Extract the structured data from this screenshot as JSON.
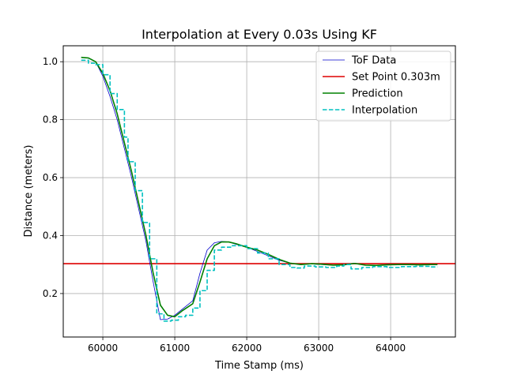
{
  "chart_data": {
    "type": "line",
    "title": "Interpolation at Every 0.03s Using KF",
    "xlabel": "Time Stamp (ms)",
    "ylabel": "Distance (meters)",
    "xlim": [
      59450,
      64900
    ],
    "ylim": [
      0.05,
      1.055
    ],
    "xticks": [
      60000,
      61000,
      62000,
      63000,
      64000
    ],
    "yticks": [
      0.2,
      0.4,
      0.6,
      0.8,
      1.0
    ],
    "xtick_labels": [
      "60000",
      "61000",
      "62000",
      "63000",
      "64000"
    ],
    "ytick_labels": [
      "0.2",
      "0.4",
      "0.6",
      "0.8",
      "1.0"
    ],
    "grid": true,
    "legend_position": "top-right",
    "series": [
      {
        "name": "ToF Data",
        "style": "solid-thin",
        "color": "#0000cc",
        "x": [
          59700,
          59800,
          59900,
          60000,
          60100,
          60200,
          60300,
          60400,
          60500,
          60600,
          60700,
          60800,
          60900,
          61000,
          61100,
          61250,
          61350,
          61450,
          61550,
          61650,
          61750,
          61850,
          62000,
          62150,
          62300,
          62450,
          62600,
          62750,
          62900,
          63050,
          63200,
          63350,
          63500,
          63650,
          63800,
          63950,
          64100,
          64250,
          64400,
          64550,
          64650
        ],
        "y": [
          1.015,
          1.012,
          1.0,
          0.95,
          0.88,
          0.8,
          0.7,
          0.6,
          0.49,
          0.38,
          0.24,
          0.11,
          0.112,
          0.125,
          0.145,
          0.175,
          0.27,
          0.35,
          0.375,
          0.38,
          0.378,
          0.37,
          0.36,
          0.345,
          0.33,
          0.315,
          0.305,
          0.3,
          0.302,
          0.3,
          0.298,
          0.3,
          0.305,
          0.298,
          0.297,
          0.3,
          0.301,
          0.3,
          0.299,
          0.301,
          0.3
        ]
      },
      {
        "name": "Set Point 0.303m",
        "style": "solid",
        "color": "#dd0000",
        "x": [
          59450,
          64900
        ],
        "y": [
          0.303,
          0.303
        ]
      },
      {
        "name": "Prediction",
        "style": "solid",
        "color": "#008000",
        "x": [
          59700,
          59800,
          59900,
          60000,
          60100,
          60200,
          60300,
          60400,
          60500,
          60600,
          60700,
          60800,
          60900,
          61000,
          61100,
          61250,
          61350,
          61450,
          61550,
          61650,
          61750,
          61850,
          62000,
          62150,
          62300,
          62450,
          62600,
          62750,
          62900,
          63050,
          63200,
          63350,
          63500,
          63650,
          63800,
          63950,
          64100,
          64250,
          64400,
          64550,
          64650
        ],
        "y": [
          1.015,
          1.013,
          1.0,
          0.96,
          0.9,
          0.82,
          0.72,
          0.62,
          0.51,
          0.4,
          0.27,
          0.16,
          0.125,
          0.12,
          0.14,
          0.165,
          0.24,
          0.32,
          0.365,
          0.378,
          0.378,
          0.372,
          0.36,
          0.35,
          0.335,
          0.318,
          0.305,
          0.3,
          0.303,
          0.301,
          0.298,
          0.299,
          0.304,
          0.298,
          0.297,
          0.299,
          0.3,
          0.3,
          0.299,
          0.3,
          0.3
        ]
      },
      {
        "name": "Interpolation",
        "style": "dashed",
        "color": "#00c0c0",
        "x": [
          59700,
          59800,
          59800,
          59900,
          59900,
          60000,
          60000,
          60100,
          60100,
          60200,
          60200,
          60300,
          60300,
          60350,
          60350,
          60450,
          60450,
          60550,
          60550,
          60650,
          60650,
          60750,
          60750,
          60850,
          60850,
          60950,
          60950,
          61050,
          61050,
          61150,
          61150,
          61250,
          61250,
          61350,
          61350,
          61450,
          61450,
          61550,
          61550,
          61650,
          61650,
          61800,
          61800,
          62000,
          62000,
          62150,
          62150,
          62300,
          62300,
          62450,
          62450,
          62600,
          62600,
          62700,
          62700,
          62800,
          62800,
          62950,
          62950,
          63100,
          63100,
          63250,
          63250,
          63350,
          63350,
          63450,
          63450,
          63600,
          63600,
          63750,
          63750,
          63950,
          63950,
          64150,
          64150,
          64350,
          64350,
          64550,
          64550,
          64650
        ],
        "y": [
          1.005,
          1.005,
          0.995,
          0.995,
          0.99,
          0.99,
          0.955,
          0.955,
          0.89,
          0.89,
          0.835,
          0.835,
          0.74,
          0.74,
          0.655,
          0.655,
          0.555,
          0.555,
          0.445,
          0.445,
          0.32,
          0.32,
          0.13,
          0.13,
          0.105,
          0.105,
          0.108,
          0.108,
          0.12,
          0.12,
          0.125,
          0.125,
          0.15,
          0.15,
          0.21,
          0.21,
          0.28,
          0.28,
          0.35,
          0.35,
          0.36,
          0.36,
          0.365,
          0.365,
          0.355,
          0.355,
          0.34,
          0.34,
          0.32,
          0.32,
          0.3,
          0.3,
          0.29,
          0.29,
          0.288,
          0.288,
          0.295,
          0.295,
          0.292,
          0.292,
          0.29,
          0.29,
          0.295,
          0.295,
          0.3,
          0.3,
          0.285,
          0.285,
          0.29,
          0.29,
          0.293,
          0.293,
          0.29,
          0.29,
          0.293,
          0.293,
          0.294,
          0.294,
          0.292,
          0.292
        ]
      }
    ]
  }
}
